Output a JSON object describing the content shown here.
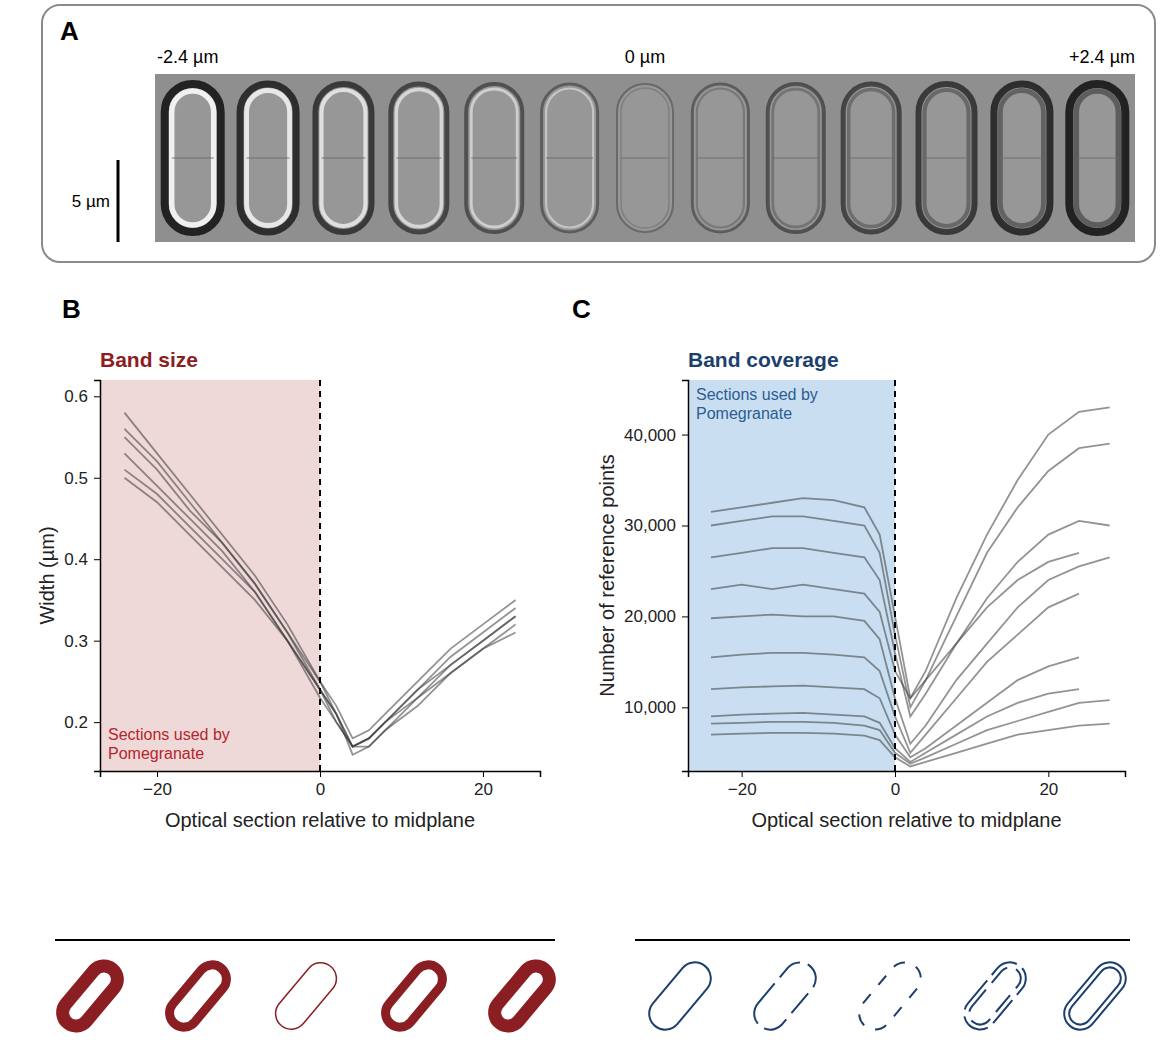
{
  "panel_a": {
    "letter": "A",
    "focus_labels": [
      "-2.4 µm",
      "0 µm",
      "+2.4 µm"
    ],
    "scale_bar": "5 µm"
  },
  "chart_data": [
    {
      "type": "line",
      "panel": "B",
      "title": "Band size",
      "x_label": "Optical section relative to midplane",
      "y_label": "Width (µm)",
      "x": [
        -24,
        -20,
        -16,
        -12,
        -8,
        -4,
        0,
        2,
        4,
        6,
        8,
        12,
        16,
        20,
        24
      ],
      "series": [
        {
          "values": [
            0.58,
            0.53,
            0.48,
            0.43,
            0.38,
            0.32,
            0.25,
            0.21,
            0.17,
            0.18,
            0.2,
            0.24,
            0.28,
            0.31,
            0.34
          ]
        },
        {
          "values": [
            0.55,
            0.51,
            0.46,
            0.42,
            0.37,
            0.31,
            0.24,
            0.2,
            0.17,
            0.18,
            0.2,
            0.23,
            0.27,
            0.3,
            0.33
          ]
        },
        {
          "values": [
            0.53,
            0.49,
            0.45,
            0.41,
            0.36,
            0.3,
            0.24,
            0.21,
            0.16,
            0.17,
            0.19,
            0.23,
            0.26,
            0.29,
            0.32
          ]
        },
        {
          "values": [
            0.51,
            0.48,
            0.44,
            0.4,
            0.36,
            0.3,
            0.23,
            0.2,
            0.17,
            0.18,
            0.2,
            0.24,
            0.27,
            0.3,
            0.33
          ]
        },
        {
          "values": [
            0.56,
            0.52,
            0.47,
            0.42,
            0.37,
            0.31,
            0.25,
            0.22,
            0.18,
            0.19,
            0.21,
            0.25,
            0.29,
            0.32,
            0.35
          ]
        },
        {
          "values": [
            0.5,
            0.47,
            0.43,
            0.39,
            0.35,
            0.3,
            0.24,
            0.21,
            0.17,
            0.17,
            0.19,
            0.22,
            0.26,
            0.29,
            0.31
          ]
        }
      ],
      "color": "#3a3a3a",
      "xlim": [
        -27,
        27
      ],
      "ylim": [
        0.14,
        0.62
      ],
      "xticks": [
        {
          "value": -20,
          "label": "−20"
        },
        0,
        20
      ],
      "yticks": [
        0.2,
        0.3,
        0.4,
        0.5,
        0.6
      ],
      "vline": 0,
      "highlight": {
        "range": [
          -27,
          0
        ],
        "label": "Sections used by Pomegranate"
      }
    },
    {
      "type": "line",
      "panel": "C",
      "title": "Band coverage",
      "x_label": "Optical section relative to midplane",
      "y_label": "Number of reference points",
      "x": [
        -24,
        -20,
        -16,
        -12,
        -8,
        -4,
        -2,
        0,
        2,
        4,
        8,
        12,
        16,
        20,
        24,
        28
      ],
      "series": [
        {
          "values": [
            31500,
            32000,
            32500,
            33000,
            32800,
            32000,
            29000,
            20000,
            11000,
            14000,
            22000,
            29000,
            35000,
            40000,
            42500,
            43000
          ]
        },
        {
          "values": [
            30000,
            30500,
            31000,
            31000,
            30500,
            30000,
            27000,
            18000,
            10000,
            13000,
            20000,
            27000,
            32000,
            36000,
            38500,
            39000
          ]
        },
        {
          "values": [
            26500,
            27000,
            27500,
            27500,
            27000,
            26500,
            24000,
            16000,
            9000,
            11500,
            17000,
            22000,
            26000,
            29000,
            30500,
            30000
          ]
        },
        {
          "values": [
            23000,
            23500,
            23000,
            23500,
            23000,
            22500,
            20500,
            14000,
            11000,
            13000,
            17000,
            21000,
            24000,
            26000,
            27000,
            null
          ]
        },
        {
          "values": [
            19800,
            20000,
            20200,
            20000,
            20000,
            19500,
            17500,
            11000,
            6000,
            8000,
            13000,
            17000,
            21000,
            24000,
            25500,
            26500
          ]
        },
        {
          "values": [
            15500,
            15800,
            16000,
            16000,
            15800,
            15500,
            14000,
            9000,
            5000,
            7000,
            11000,
            15000,
            18000,
            21000,
            22500,
            null
          ]
        },
        {
          "values": [
            12000,
            12200,
            12300,
            12400,
            12200,
            12000,
            11000,
            7000,
            4500,
            5500,
            8000,
            10500,
            13000,
            14500,
            15500,
            null
          ]
        },
        {
          "values": [
            9000,
            9200,
            9300,
            9400,
            9200,
            9000,
            8300,
            5500,
            4000,
            5000,
            7000,
            9000,
            10500,
            11500,
            12000,
            null
          ]
        },
        {
          "values": [
            8200,
            8300,
            8400,
            8400,
            8300,
            8000,
            7500,
            5000,
            3800,
            4500,
            6000,
            7500,
            8500,
            9500,
            10500,
            10800
          ]
        },
        {
          "values": [
            7000,
            7100,
            7200,
            7200,
            7100,
            6900,
            6400,
            4500,
            3500,
            4000,
            5000,
            6000,
            7000,
            7500,
            8000,
            8200
          ]
        }
      ],
      "color": "#3a3a3a",
      "xlim": [
        -27,
        30
      ],
      "ylim": [
        3000,
        46000
      ],
      "xticks": [
        {
          "value": -20,
          "label": "−20"
        },
        0,
        20
      ],
      "yticks": [
        {
          "value": 10000,
          "label": "10,000"
        },
        {
          "value": 20000,
          "label": "20,000"
        },
        {
          "value": 30000,
          "label": "30,000"
        },
        {
          "value": 40000,
          "label": "40,000"
        }
      ],
      "vline": 0,
      "highlight": {
        "range": [
          -27,
          0
        ],
        "label": "Sections used by Pomegranate"
      }
    }
  ]
}
